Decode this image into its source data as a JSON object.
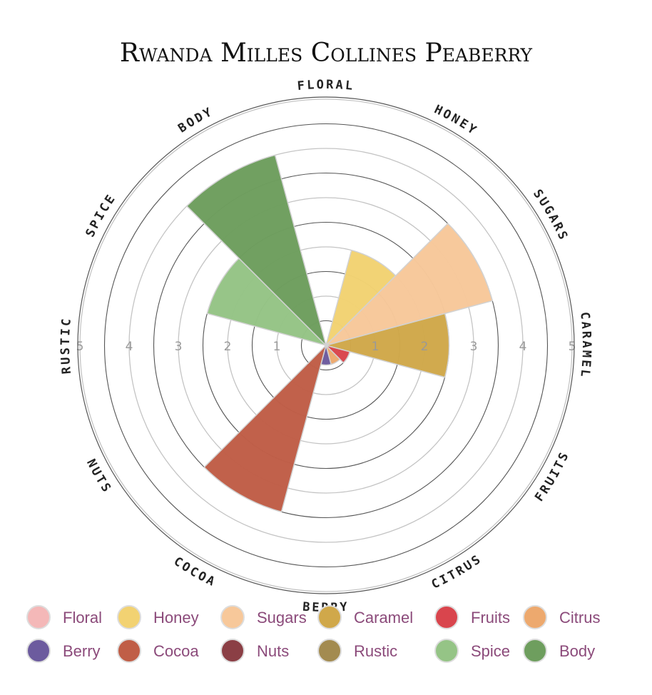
{
  "chart_data": {
    "type": "polar-bar",
    "title": "Rwanda Milles Collines Peaberry",
    "rlim": [
      0,
      5
    ],
    "r_ticks": [
      1,
      2,
      3,
      4,
      5
    ],
    "categories": [
      {
        "name": "Floral",
        "label": "FLORAL",
        "value": 0,
        "color": "#f4b8b8"
      },
      {
        "name": "Honey",
        "label": "HONEY",
        "value": 2.0,
        "color": "#f2d272"
      },
      {
        "name": "Sugars",
        "label": "SUGARS",
        "value": 3.5,
        "color": "#f7c89a"
      },
      {
        "name": "Caramel",
        "label": "CARAMEL",
        "value": 2.5,
        "color": "#d0a84a"
      },
      {
        "name": "Fruits",
        "label": "FRUITS",
        "value": 0.5,
        "color": "#d9454d"
      },
      {
        "name": "Citrus",
        "label": "CITRUS",
        "value": 0.4,
        "color": "#eda96e"
      },
      {
        "name": "Berry",
        "label": "BERRY",
        "value": 0.4,
        "color": "#6c5b9e"
      },
      {
        "name": "Cocoa",
        "label": "COCOA",
        "value": 3.5,
        "color": "#c05e47"
      },
      {
        "name": "Nuts",
        "label": "NUTS",
        "value": 0,
        "color": "#8b3f45"
      },
      {
        "name": "Rustic",
        "label": "RUSTIC",
        "value": 0,
        "color": "#a38b50"
      },
      {
        "name": "Spice",
        "label": "SPICE",
        "value": 2.5,
        "color": "#95c486"
      },
      {
        "name": "Body",
        "label": "BODY",
        "value": 4.0,
        "color": "#6e9e5e"
      }
    ]
  }
}
